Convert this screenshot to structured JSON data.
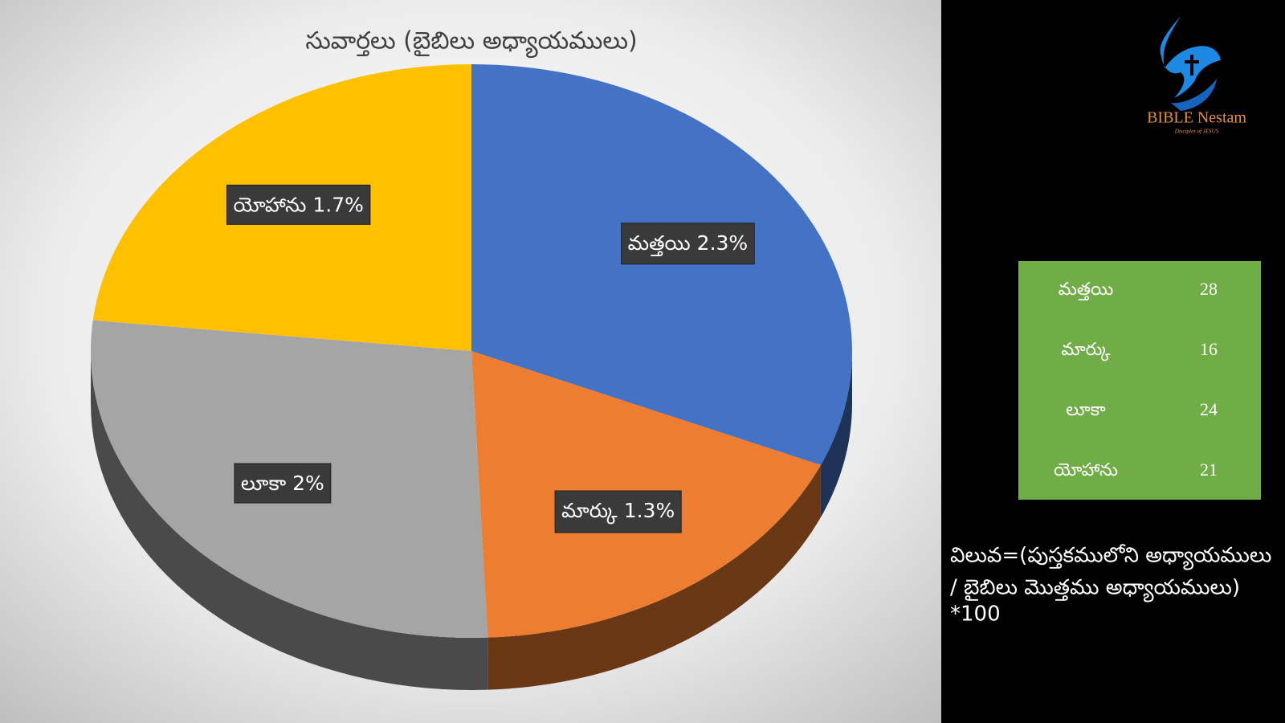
{
  "chart_data": {
    "type": "pie",
    "title": "సువార్తలు (బైబిలు అధ్యాయములు)",
    "categories": [
      "మత్తయి",
      "మార్కు",
      "లూకా",
      "యోహాను"
    ],
    "values": [
      2.3,
      1.3,
      2,
      1.7
    ],
    "value_labels": [
      "2.3%",
      "1.3%",
      "2%",
      "1.7%"
    ],
    "colors": [
      "#4472c4",
      "#ed7d31",
      "#a5a5a5",
      "#ffc000"
    ]
  },
  "table": {
    "rows": [
      [
        "మత్తయి",
        "28"
      ],
      [
        "మార్కు",
        "16"
      ],
      [
        "లూకా",
        "24"
      ],
      [
        "యోహాను",
        "21"
      ]
    ]
  },
  "formula": [
    "విలువ=(పుస్తకములోని అధ్యాయములు",
    "/ బైబిలు మొత్తము అధ్యాయములు)",
    "*100"
  ],
  "logo": {
    "title": "BIBLE Nestam",
    "subtitle": "Disciples of JESUS"
  }
}
